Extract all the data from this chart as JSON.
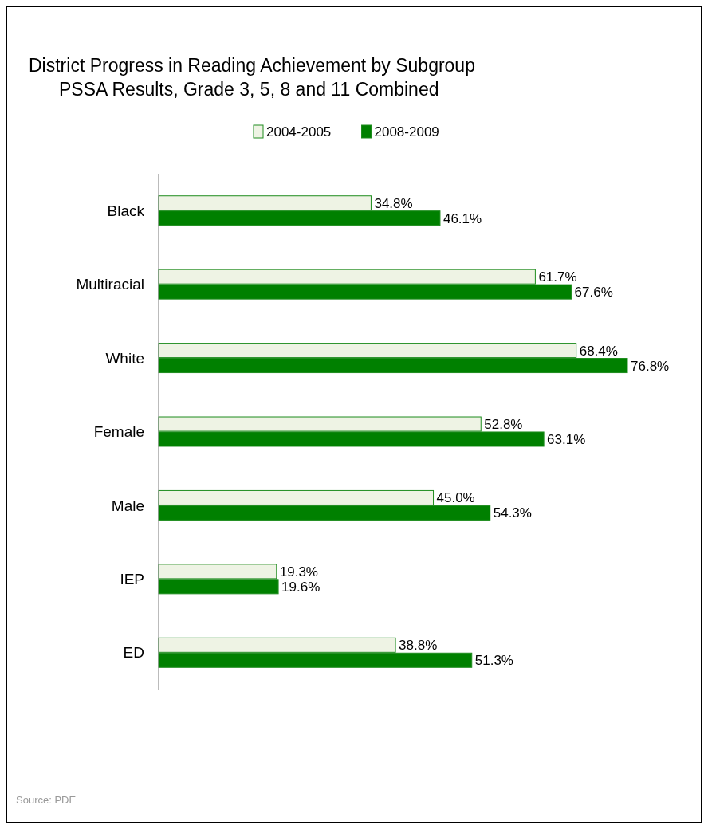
{
  "chart_data": {
    "type": "bar",
    "orientation": "horizontal",
    "title": "District Progress in Reading Achievement by Subgroup",
    "subtitle": "PSSA Results, Grade 3, 5, 8 and 11 Combined",
    "categories": [
      "Black",
      "Multiracial",
      "White",
      "Female",
      "Male",
      "IEP",
      "ED"
    ],
    "series": [
      {
        "name": "2004-2005",
        "color": "#eef3e4",
        "values": [
          34.8,
          61.7,
          68.4,
          52.8,
          45.0,
          19.3,
          38.8
        ],
        "value_labels": [
          "34.8%",
          "61.7%",
          "68.4%",
          "52.8%",
          "45.0%",
          "19.3%",
          "38.8%"
        ]
      },
      {
        "name": "2008-2009",
        "color": "#008000",
        "values": [
          46.1,
          67.6,
          76.8,
          63.1,
          54.3,
          19.6,
          51.3
        ],
        "value_labels": [
          "46.1%",
          "67.6%",
          "76.8%",
          "63.1%",
          "54.3%",
          "19.6%",
          "51.3%"
        ]
      }
    ],
    "legend": "top",
    "annotations": [
      "Source: PDE"
    ]
  }
}
